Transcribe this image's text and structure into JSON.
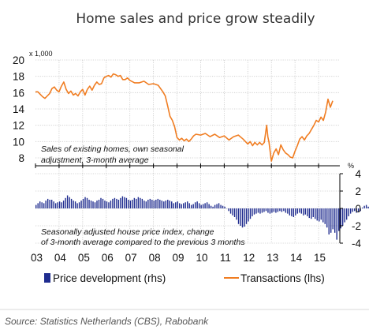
{
  "page": {
    "title": "Home sales and price grow steadily",
    "source": "Source:  Statistics Netherlands (CBS), Rabobank"
  },
  "chart_data": {
    "type": "bar+line",
    "title": "Home sales and price grow steadily",
    "x_ticks": [
      "03",
      "04",
      "05",
      "06",
      "07",
      "08",
      "09",
      "10",
      "11",
      "12",
      "13",
      "14",
      "15"
    ],
    "lhs": {
      "unit": "x 1,000",
      "ticks": [
        20,
        18,
        16,
        14,
        12,
        10,
        8
      ],
      "ylim": [
        8,
        20
      ],
      "annotation_line1": "Sales of existing homes, own seasonal",
      "annotation_line2": "adjustment, 3-month average"
    },
    "rhs": {
      "unit": "%",
      "ticks": [
        4,
        2,
        0,
        -2,
        -4
      ],
      "ylim": [
        -4,
        4
      ],
      "annotation_line1": "Seasonally adjusted house price index, change",
      "annotation_line2": "of 3-month average compared to the previous 3 months"
    },
    "legend": [
      {
        "label": "Price development (rhs)",
        "color": "#1f2c8f"
      },
      {
        "label": "Transactions (lhs)",
        "color": "#f07d22"
      }
    ],
    "series": [
      {
        "name": "Transactions (lhs)",
        "type": "line",
        "axis": "lhs",
        "color": "#f07d22",
        "x": [
          2003.0,
          2003.1,
          2003.2,
          2003.3,
          2003.4,
          2003.5,
          2003.6,
          2003.7,
          2003.8,
          2003.9,
          2004.0,
          2004.1,
          2004.2,
          2004.3,
          2004.4,
          2004.5,
          2004.6,
          2004.7,
          2004.8,
          2004.9,
          2005.0,
          2005.1,
          2005.2,
          2005.3,
          2005.4,
          2005.5,
          2005.6,
          2005.7,
          2005.8,
          2005.9,
          2006.0,
          2006.1,
          2006.2,
          2006.3,
          2006.4,
          2006.5,
          2006.6,
          2006.7,
          2006.8,
          2006.9,
          2007.0,
          2007.2,
          2007.4,
          2007.6,
          2007.8,
          2008.0,
          2008.2,
          2008.4,
          2008.5,
          2008.6,
          2008.7,
          2008.8,
          2008.9,
          2009.0,
          2009.1,
          2009.2,
          2009.3,
          2009.4,
          2009.5,
          2009.6,
          2009.7,
          2009.8,
          2010.0,
          2010.2,
          2010.4,
          2010.6,
          2010.8,
          2011.0,
          2011.2,
          2011.4,
          2011.6,
          2011.8,
          2012.0,
          2012.1,
          2012.2,
          2012.3,
          2012.4,
          2012.5,
          2012.6,
          2012.7,
          2012.8,
          2012.85,
          2012.9,
          2013.0,
          2013.1,
          2013.2,
          2013.3,
          2013.4,
          2013.5,
          2013.6,
          2013.7,
          2013.8,
          2013.9,
          2014.0,
          2014.1,
          2014.2,
          2014.3,
          2014.4,
          2014.5,
          2014.6,
          2014.7,
          2014.8,
          2014.9,
          2015.0,
          2015.1,
          2015.2,
          2015.3,
          2015.4,
          2015.5,
          2015.6
        ],
        "values": [
          16.1,
          16.1,
          15.8,
          15.5,
          15.3,
          15.6,
          15.9,
          16.5,
          16.7,
          16.3,
          16.1,
          16.8,
          17.3,
          16.4,
          15.9,
          16.2,
          15.7,
          15.9,
          15.6,
          16.1,
          16.4,
          15.7,
          16.4,
          16.8,
          16.3,
          16.9,
          17.3,
          17.0,
          17.1,
          17.8,
          18.0,
          18.1,
          17.9,
          18.3,
          18.2,
          18.0,
          18.1,
          17.6,
          17.6,
          17.8,
          17.5,
          17.2,
          17.2,
          17.4,
          17.0,
          17.1,
          16.9,
          16.1,
          15.6,
          14.4,
          13.1,
          12.6,
          11.8,
          10.5,
          10.2,
          10.4,
          10.1,
          10.3,
          10.0,
          10.3,
          10.7,
          10.9,
          10.8,
          11.0,
          10.6,
          10.9,
          10.5,
          10.7,
          10.2,
          10.6,
          10.8,
          10.3,
          9.7,
          10.0,
          9.5,
          9.9,
          9.6,
          9.9,
          9.6,
          9.9,
          12.0,
          10.6,
          9.9,
          7.6,
          8.6,
          9.1,
          8.4,
          9.6,
          9.0,
          8.6,
          8.4,
          8.1,
          8.0,
          8.8,
          9.5,
          10.3,
          10.6,
          10.2,
          10.7,
          11.0,
          11.5,
          12.0,
          12.6,
          12.4,
          13.0,
          12.6,
          13.6,
          15.2,
          14.2,
          15.0
        ]
      },
      {
        "name": "Price development (rhs)",
        "type": "bar",
        "axis": "rhs",
        "color": "#1f2c8f",
        "x_start": 2003.0,
        "x_step": 0.08333,
        "values": [
          0.4,
          0.6,
          0.8,
          0.7,
          0.6,
          0.9,
          1.1,
          1.0,
          1.0,
          0.8,
          0.6,
          0.7,
          0.8,
          0.7,
          0.9,
          1.2,
          1.5,
          1.3,
          1.1,
          0.9,
          0.8,
          0.6,
          0.7,
          0.9,
          1.1,
          1.3,
          1.2,
          1.0,
          0.9,
          0.8,
          0.7,
          0.9,
          1.0,
          1.2,
          1.1,
          0.9,
          0.8,
          0.7,
          0.9,
          1.1,
          1.2,
          1.1,
          1.0,
          1.2,
          1.4,
          1.3,
          1.2,
          1.0,
          0.9,
          1.0,
          1.2,
          1.1,
          1.3,
          1.2,
          1.1,
          0.9,
          0.8,
          1.0,
          1.1,
          1.0,
          0.9,
          1.0,
          1.1,
          1.0,
          0.9,
          0.8,
          0.9,
          1.0,
          0.9,
          0.8,
          0.6,
          0.7,
          0.8,
          0.6,
          0.5,
          0.6,
          0.7,
          0.8,
          0.6,
          0.4,
          0.5,
          0.7,
          0.8,
          0.6,
          0.4,
          0.5,
          0.6,
          0.7,
          0.5,
          0.3,
          0.2,
          0.4,
          0.5,
          0.6,
          0.4,
          0.3,
          0.2,
          0.0,
          -0.3,
          -0.6,
          -0.8,
          -1.0,
          -1.3,
          -1.8,
          -2.0,
          -2.2,
          -2.1,
          -1.8,
          -1.5,
          -1.2,
          -0.9,
          -0.7,
          -0.6,
          -0.5,
          -0.6,
          -0.5,
          -0.4,
          -0.3,
          -0.5,
          -0.6,
          -0.5,
          -0.4,
          -0.5,
          -0.4,
          -0.3,
          -0.4,
          -0.3,
          -0.5,
          -0.6,
          -0.8,
          -0.9,
          -1.0,
          -0.8,
          -0.6,
          -0.5,
          -0.6,
          -0.8,
          -0.7,
          -0.9,
          -1.1,
          -1.2,
          -1.0,
          -1.2,
          -1.4,
          -1.5,
          -1.3,
          -1.6,
          -1.8,
          -2.2,
          -3.0,
          -2.8,
          -2.4,
          -2.8,
          -3.6,
          -2.6,
          -2.3,
          -2.0,
          -1.6,
          -1.3,
          -0.9,
          -0.6,
          -0.4,
          -0.3,
          -0.5,
          -0.4,
          -0.3,
          0.1,
          0.3,
          0.4,
          0.2,
          0.3,
          0.5,
          0.3,
          0.2,
          0.1,
          0.3,
          0.4,
          0.5,
          0.6,
          0.7,
          0.8,
          0.6,
          0.5,
          0.3,
          0.4,
          0.6,
          0.9,
          1.2,
          1.4,
          1.1
        ]
      }
    ]
  }
}
